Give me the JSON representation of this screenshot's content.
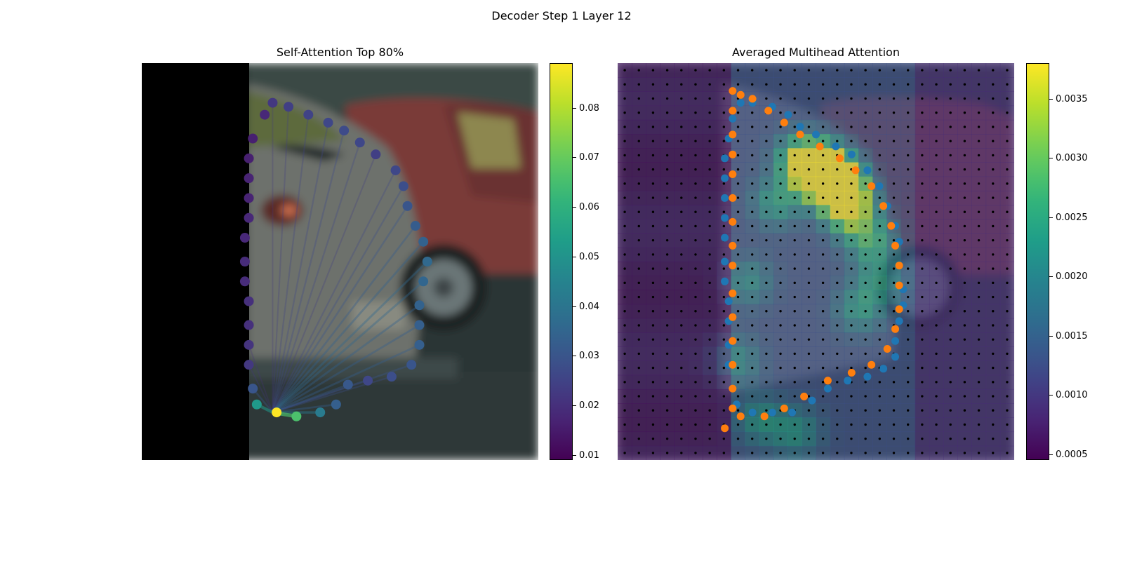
{
  "figure": {
    "title": "Decoder Step 1 Layer 12"
  },
  "chart_data": [
    {
      "type": "scatter",
      "title": "Self-Attention Top 80%",
      "background": "blurred photo of parked cars, left 27% padded black",
      "query_point": [
        0.33,
        0.88
      ],
      "points": [
        {
          "x": 0.31,
          "y": 0.13,
          "v": 0.018
        },
        {
          "x": 0.33,
          "y": 0.1,
          "v": 0.022
        },
        {
          "x": 0.37,
          "y": 0.11,
          "v": 0.024
        },
        {
          "x": 0.42,
          "y": 0.13,
          "v": 0.025
        },
        {
          "x": 0.47,
          "y": 0.15,
          "v": 0.026
        },
        {
          "x": 0.51,
          "y": 0.17,
          "v": 0.027
        },
        {
          "x": 0.55,
          "y": 0.2,
          "v": 0.026
        },
        {
          "x": 0.59,
          "y": 0.23,
          "v": 0.024
        },
        {
          "x": 0.64,
          "y": 0.27,
          "v": 0.026
        },
        {
          "x": 0.66,
          "y": 0.31,
          "v": 0.028
        },
        {
          "x": 0.67,
          "y": 0.36,
          "v": 0.03
        },
        {
          "x": 0.69,
          "y": 0.41,
          "v": 0.032
        },
        {
          "x": 0.71,
          "y": 0.45,
          "v": 0.034
        },
        {
          "x": 0.72,
          "y": 0.5,
          "v": 0.036
        },
        {
          "x": 0.71,
          "y": 0.55,
          "v": 0.035
        },
        {
          "x": 0.7,
          "y": 0.61,
          "v": 0.034
        },
        {
          "x": 0.7,
          "y": 0.66,
          "v": 0.033
        },
        {
          "x": 0.7,
          "y": 0.71,
          "v": 0.033
        },
        {
          "x": 0.68,
          "y": 0.76,
          "v": 0.03
        },
        {
          "x": 0.63,
          "y": 0.79,
          "v": 0.028
        },
        {
          "x": 0.57,
          "y": 0.8,
          "v": 0.026
        },
        {
          "x": 0.52,
          "y": 0.81,
          "v": 0.031
        },
        {
          "x": 0.49,
          "y": 0.86,
          "v": 0.033
        },
        {
          "x": 0.45,
          "y": 0.88,
          "v": 0.042
        },
        {
          "x": 0.39,
          "y": 0.89,
          "v": 0.066
        },
        {
          "x": 0.34,
          "y": 0.88,
          "v": 0.089
        },
        {
          "x": 0.29,
          "y": 0.86,
          "v": 0.052
        },
        {
          "x": 0.28,
          "y": 0.82,
          "v": 0.03
        },
        {
          "x": 0.27,
          "y": 0.76,
          "v": 0.022
        },
        {
          "x": 0.27,
          "y": 0.71,
          "v": 0.021
        },
        {
          "x": 0.27,
          "y": 0.66,
          "v": 0.02
        },
        {
          "x": 0.27,
          "y": 0.6,
          "v": 0.02
        },
        {
          "x": 0.26,
          "y": 0.55,
          "v": 0.019
        },
        {
          "x": 0.26,
          "y": 0.5,
          "v": 0.019
        },
        {
          "x": 0.26,
          "y": 0.44,
          "v": 0.018
        },
        {
          "x": 0.27,
          "y": 0.39,
          "v": 0.018
        },
        {
          "x": 0.27,
          "y": 0.34,
          "v": 0.017
        },
        {
          "x": 0.27,
          "y": 0.29,
          "v": 0.017
        },
        {
          "x": 0.27,
          "y": 0.24,
          "v": 0.016
        },
        {
          "x": 0.28,
          "y": 0.19,
          "v": 0.016
        }
      ],
      "colorbar": {
        "min": 0.009,
        "max": 0.089,
        "ticks": [
          "0.01",
          "0.02",
          "0.03",
          "0.04",
          "0.05",
          "0.06",
          "0.07",
          "0.08"
        ]
      }
    },
    {
      "type": "heatmap",
      "title": "Averaged Multihead Attention",
      "grid": {
        "rows": 28,
        "cols": 28
      },
      "series": [
        {
          "color": "#1f77b4",
          "points": [
            [
              0.31,
              0.1
            ],
            [
              0.34,
              0.1
            ],
            [
              0.39,
              0.11
            ],
            [
              0.43,
              0.13
            ],
            [
              0.46,
              0.16
            ],
            [
              0.5,
              0.18
            ],
            [
              0.55,
              0.21
            ],
            [
              0.59,
              0.23
            ],
            [
              0.63,
              0.27
            ],
            [
              0.66,
              0.31
            ],
            [
              0.68,
              0.36
            ],
            [
              0.7,
              0.41
            ],
            [
              0.71,
              0.45
            ],
            [
              0.71,
              0.51
            ],
            [
              0.72,
              0.57
            ],
            [
              0.72,
              0.61
            ],
            [
              0.71,
              0.65
            ],
            [
              0.7,
              0.7
            ],
            [
              0.7,
              0.74
            ],
            [
              0.67,
              0.77
            ],
            [
              0.63,
              0.79
            ],
            [
              0.58,
              0.8
            ],
            [
              0.53,
              0.82
            ],
            [
              0.49,
              0.85
            ],
            [
              0.44,
              0.88
            ],
            [
              0.39,
              0.88
            ],
            [
              0.34,
              0.88
            ],
            [
              0.3,
              0.86
            ],
            [
              0.29,
              0.82
            ],
            [
              0.28,
              0.76
            ],
            [
              0.28,
              0.71
            ],
            [
              0.28,
              0.65
            ],
            [
              0.28,
              0.6
            ],
            [
              0.27,
              0.55
            ],
            [
              0.27,
              0.5
            ],
            [
              0.27,
              0.44
            ],
            [
              0.27,
              0.39
            ],
            [
              0.27,
              0.34
            ],
            [
              0.27,
              0.29
            ],
            [
              0.27,
              0.24
            ],
            [
              0.28,
              0.19
            ],
            [
              0.29,
              0.14
            ]
          ]
        },
        {
          "color": "#ff7f0e",
          "points": [
            [
              0.31,
              0.08
            ],
            [
              0.34,
              0.09
            ],
            [
              0.38,
              0.12
            ],
            [
              0.42,
              0.15
            ],
            [
              0.46,
              0.18
            ],
            [
              0.51,
              0.21
            ],
            [
              0.56,
              0.24
            ],
            [
              0.6,
              0.27
            ],
            [
              0.64,
              0.31
            ],
            [
              0.67,
              0.36
            ],
            [
              0.69,
              0.41
            ],
            [
              0.7,
              0.46
            ],
            [
              0.71,
              0.51
            ],
            [
              0.71,
              0.56
            ],
            [
              0.71,
              0.62
            ],
            [
              0.7,
              0.67
            ],
            [
              0.68,
              0.72
            ],
            [
              0.64,
              0.76
            ],
            [
              0.59,
              0.78
            ],
            [
              0.53,
              0.8
            ],
            [
              0.47,
              0.84
            ],
            [
              0.42,
              0.87
            ],
            [
              0.37,
              0.89
            ],
            [
              0.31,
              0.89
            ],
            [
              0.27,
              0.92
            ],
            [
              0.29,
              0.87
            ],
            [
              0.29,
              0.82
            ],
            [
              0.29,
              0.76
            ],
            [
              0.29,
              0.7
            ],
            [
              0.29,
              0.64
            ],
            [
              0.29,
              0.58
            ],
            [
              0.29,
              0.51
            ],
            [
              0.29,
              0.46
            ],
            [
              0.29,
              0.4
            ],
            [
              0.29,
              0.34
            ],
            [
              0.29,
              0.28
            ],
            [
              0.29,
              0.23
            ],
            [
              0.29,
              0.18
            ],
            [
              0.29,
              0.12
            ],
            [
              0.29,
              0.07
            ]
          ]
        }
      ],
      "hotspots": [
        [
          0.55,
          0.3,
          1.0
        ],
        [
          0.52,
          0.27,
          0.9
        ],
        [
          0.57,
          0.33,
          0.85
        ],
        [
          0.49,
          0.27,
          0.75
        ],
        [
          0.46,
          0.24,
          0.55
        ],
        [
          0.59,
          0.38,
          0.6
        ],
        [
          0.64,
          0.45,
          0.45
        ],
        [
          0.66,
          0.55,
          0.35
        ],
        [
          0.4,
          0.35,
          0.4
        ],
        [
          0.36,
          0.9,
          0.35
        ],
        [
          0.45,
          0.93,
          0.35
        ],
        [
          0.33,
          0.55,
          0.3
        ],
        [
          0.3,
          0.75,
          0.3
        ],
        [
          0.61,
          0.62,
          0.35
        ]
      ],
      "colorbar": {
        "min": 0.00045,
        "max": 0.0038,
        "ticks": [
          "0.0005",
          "0.0010",
          "0.0015",
          "0.0020",
          "0.0025",
          "0.0030",
          "0.0035"
        ]
      }
    }
  ]
}
